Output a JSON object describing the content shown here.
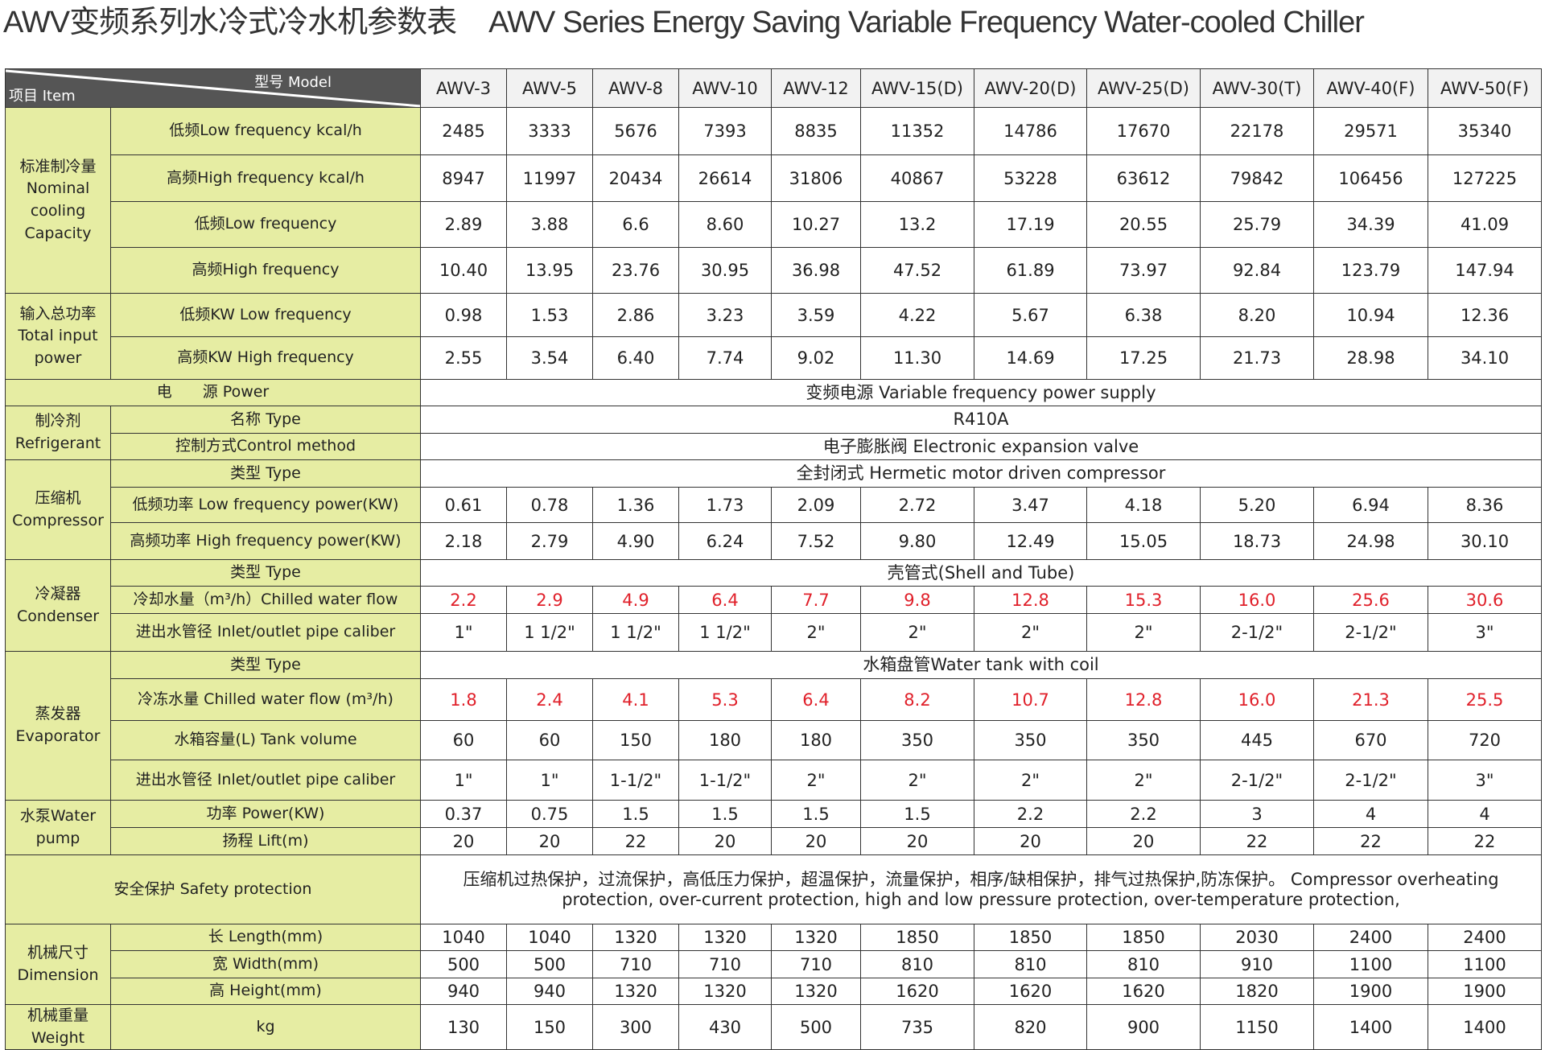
{
  "title": {
    "cn": "AWV变频系列水冷式冷水机参数表",
    "en": "AWV Series Energy Saving Variable Frequency Water-cooled Chiller"
  },
  "header": {
    "model_label": "型号  Model",
    "item_label": "项目  Item",
    "models": [
      "AWV-3",
      "AWV-5",
      "AWV-8",
      "AWV-10",
      "AWV-12",
      "AWV-15(D)",
      "AWV-20(D)",
      "AWV-25(D)",
      "AWV-30(T)",
      "AWV-40(F)",
      "AWV-50(F)"
    ]
  },
  "colors": {
    "label_bg": "#e6eda3",
    "header_bg": "#555555",
    "highlight_value": "#e0202a"
  },
  "groups": [
    {
      "label": "标准制冷量 Nominal cooling Capacity",
      "rows": [
        {
          "label": "低频Low frequency  kcal/h",
          "values": [
            "2485",
            "3333",
            "5676",
            "7393",
            "8835",
            "11352",
            "14786",
            "17670",
            "22178",
            "29571",
            "35340"
          ]
        },
        {
          "label": "高频High frequency  kcal/h",
          "values": [
            "8947",
            "11997",
            "20434",
            "26614",
            "31806",
            "40867",
            "53228",
            "63612",
            "79842",
            "106456",
            "127225"
          ]
        },
        {
          "label": "低频Low frequency",
          "values": [
            "2.89",
            "3.88",
            "6.6",
            "8.60",
            "10.27",
            "13.2",
            "17.19",
            "20.55",
            "25.79",
            "34.39",
            "41.09"
          ]
        },
        {
          "label": "高频High frequency",
          "values": [
            "10.40",
            "13.95",
            "23.76",
            "30.95",
            "36.98",
            "47.52",
            "61.89",
            "73.97",
            "92.84",
            "123.79",
            "147.94"
          ]
        }
      ]
    },
    {
      "label": "输入总功率 Total input power",
      "rows": [
        {
          "label": "低频KW   Low frequency",
          "values": [
            "0.98",
            "1.53",
            "2.86",
            "3.23",
            "3.59",
            "4.22",
            "5.67",
            "6.38",
            "8.20",
            "10.94",
            "12.36"
          ]
        },
        {
          "label": "高频KW   High frequency",
          "values": [
            "2.55",
            "3.54",
            "6.40",
            "7.74",
            "9.02",
            "11.30",
            "14.69",
            "17.25",
            "21.73",
            "28.98",
            "34.10"
          ]
        }
      ]
    },
    {
      "label": "电　　源  Power",
      "full": true,
      "rows": [
        {
          "span": "变频电源 Variable frequency power supply"
        }
      ]
    },
    {
      "label": "制冷剂 Refrigerant",
      "rows": [
        {
          "label": "名称  Type",
          "span": "R410A"
        },
        {
          "label": "控制方式Control method",
          "span": "电子膨胀阀 Electronic expansion valve"
        }
      ]
    },
    {
      "label": "压缩机 Compressor",
      "rows": [
        {
          "label": "类型 Type",
          "span": "全封闭式 Hermetic motor driven compressor"
        },
        {
          "label": "低频功率  Low frequency power(KW)",
          "values": [
            "0.61",
            "0.78",
            "1.36",
            "1.73",
            "2.09",
            "2.72",
            "3.47",
            "4.18",
            "5.20",
            "6.94",
            "8.36"
          ]
        },
        {
          "label": "高频功率 High frequency power(KW)",
          "values": [
            "2.18",
            "2.79",
            "4.90",
            "6.24",
            "7.52",
            "9.80",
            "12.49",
            "15.05",
            "18.73",
            "24.98",
            "30.10"
          ]
        }
      ]
    },
    {
      "label": "冷凝器 Condenser",
      "rows": [
        {
          "label": "类型 Type",
          "span": "壳管式(Shell and Tube)"
        },
        {
          "label": "冷却水量（m³/h）Chilled water flow",
          "red": true,
          "values": [
            "2.2",
            "2.9",
            "4.9",
            "6.4",
            "7.7",
            "9.8",
            "12.8",
            "15.3",
            "16.0",
            "25.6",
            "30.6"
          ]
        },
        {
          "label": "进出水管径 Inlet/outlet pipe caliber",
          "values": [
            "1\"",
            "1 1/2\"",
            "1 1/2\"",
            "1 1/2\"",
            "2\"",
            "2\"",
            "2\"",
            "2\"",
            "2-1/2\"",
            "2-1/2\"",
            "3\""
          ]
        }
      ]
    },
    {
      "label": "蒸发器 Evaporator",
      "rows": [
        {
          "label": "类型 Type",
          "span": "水箱盘管Water tank with coil"
        },
        {
          "label": "冷冻水量 Chilled water flow (m³/h)",
          "red": true,
          "values": [
            "1.8",
            "2.4",
            "4.1",
            "5.3",
            "6.4",
            "8.2",
            "10.7",
            "12.8",
            "16.0",
            "21.3",
            "25.5"
          ]
        },
        {
          "label": "水箱容量(L) Tank volume",
          "values": [
            "60",
            "60",
            "150",
            "180",
            "180",
            "350",
            "350",
            "350",
            "445",
            "670",
            "720"
          ]
        },
        {
          "label": "进出水管径   Inlet/outlet pipe caliber",
          "values": [
            "1\"",
            "1\"",
            "1-1/2\"",
            "1-1/2\"",
            "2\"",
            "2\"",
            "2\"",
            "2\"",
            "2-1/2\"",
            "2-1/2\"",
            "3\""
          ]
        }
      ]
    },
    {
      "label": "水泵Water pump",
      "rows": [
        {
          "label": "功率  Power(KW)",
          "values": [
            "0.37",
            "0.75",
            "1.5",
            "1.5",
            "1.5",
            "1.5",
            "2.2",
            "2.2",
            "3",
            "4",
            "4"
          ]
        },
        {
          "label": "扬程  Lift(m)",
          "values": [
            "20",
            "20",
            "22",
            "20",
            "20",
            "20",
            "20",
            "20",
            "22",
            "22",
            "22"
          ]
        }
      ]
    },
    {
      "label": "安全保护 Safety protection",
      "full": true,
      "rows": [
        {
          "span": "压缩机过热保护，过流保护，高低压力保护，超温保护，流量保护，相序/缺相保护，排气过热保护,防冻保护。 Compressor overheating protection, over-current protection, high and low pressure protection, over-temperature protection,"
        }
      ]
    },
    {
      "label": "机械尺寸 Dimension",
      "rows": [
        {
          "label": "长  Length(mm)",
          "values": [
            "1040",
            "1040",
            "1320",
            "1320",
            "1320",
            "1850",
            "1850",
            "1850",
            "2030",
            "2400",
            "2400"
          ]
        },
        {
          "label": "宽  Width(mm)",
          "values": [
            "500",
            "500",
            "710",
            "710",
            "710",
            "810",
            "810",
            "810",
            "910",
            "1100",
            "1100"
          ]
        },
        {
          "label": "高  Height(mm)",
          "values": [
            "940",
            "940",
            "1320",
            "1320",
            "1320",
            "1620",
            "1620",
            "1620",
            "1820",
            "1900",
            "1900"
          ]
        }
      ]
    },
    {
      "label": "机械重量Weight",
      "rows": [
        {
          "label": "kg",
          "values": [
            "130",
            "150",
            "300",
            "430",
            "500",
            "735",
            "820",
            "900",
            "1150",
            "1400",
            "1400"
          ]
        }
      ]
    }
  ]
}
